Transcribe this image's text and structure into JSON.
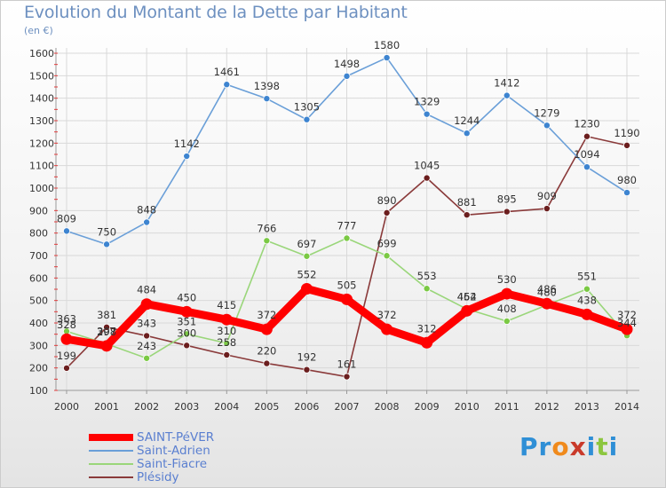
{
  "page": {
    "title": "Evolution du Montant de la Dette par Habitant",
    "subtitle": "(en €)"
  },
  "brand": {
    "text": "Proxiti",
    "letters": [
      {
        "ch": "P",
        "color": "#2f8fd6"
      },
      {
        "ch": "r",
        "color": "#2f8fd6"
      },
      {
        "ch": "o",
        "color": "#f08a1c"
      },
      {
        "ch": "x",
        "color": "#c93a2a"
      },
      {
        "ch": "i",
        "color": "#2f8fd6"
      },
      {
        "ch": "t",
        "color": "#8cc63f"
      },
      {
        "ch": "i",
        "color": "#2f8fd6"
      }
    ]
  },
  "chart_data": {
    "type": "line",
    "title": "Evolution du Montant de la Dette par Habitant",
    "subtitle": "(en €)",
    "xlabel": "",
    "ylabel": "",
    "x": [
      "2000",
      "2001",
      "2002",
      "2003",
      "2004",
      "2005",
      "2006",
      "2007",
      "2008",
      "2009",
      "2010",
      "2011",
      "2012",
      "2013",
      "2014"
    ],
    "ylim": [
      100,
      1600
    ],
    "yticks": [
      100,
      200,
      300,
      400,
      500,
      600,
      700,
      800,
      900,
      1000,
      1100,
      1200,
      1300,
      1400,
      1500,
      1600
    ],
    "grid": true,
    "legend": "bottom-left",
    "series": [
      {
        "name": "SAINT-PéVER",
        "color": "#ff0000",
        "marker": "#ff0000",
        "values": [
          328,
          298,
          484,
          450,
          415,
          372,
          552,
          505,
          372,
          312,
          454,
          530,
          486,
          438,
          372
        ],
        "labels": [
          "328",
          "298",
          "484",
          "450",
          "415",
          "372",
          "552",
          "505",
          "372",
          "312",
          "454",
          "530",
          "486",
          "438",
          "372"
        ]
      },
      {
        "name": "Saint-Adrien",
        "color": "#6a9fd8",
        "marker": "#3d84d0",
        "values": [
          809,
          750,
          848,
          1142,
          1461,
          1398,
          1305,
          1498,
          1580,
          1329,
          1244,
          1412,
          1279,
          1094,
          980
        ],
        "labels": [
          "809",
          "750",
          "848",
          "1142",
          "1461",
          "1398",
          "1305",
          "1498",
          "1580",
          "1329",
          "1244",
          "1412",
          "1279",
          "1094",
          "980"
        ]
      },
      {
        "name": "Saint-Fiacre",
        "color": "#9ad67a",
        "marker": "#7ac943",
        "values": [
          363,
          307,
          243,
          351,
          310,
          766,
          697,
          777,
          699,
          553,
          462,
          408,
          480,
          551,
          344
        ],
        "labels": [
          "363",
          "307",
          "243",
          "351",
          "310",
          "766",
          "697",
          "777",
          "699",
          "553",
          "462",
          "408",
          "480",
          "551",
          "344"
        ]
      },
      {
        "name": "Plésidy",
        "color": "#8a3a3a",
        "marker": "#6b1e1e",
        "values": [
          199,
          381,
          343,
          300,
          258,
          220,
          192,
          161,
          890,
          1045,
          881,
          895,
          909,
          1230,
          1190
        ],
        "labels": [
          "199",
          "381",
          "343",
          "300",
          "258",
          "220",
          "192",
          "161",
          "890",
          "1045",
          "881",
          "895",
          "909",
          "1230",
          "1190"
        ]
      }
    ]
  }
}
